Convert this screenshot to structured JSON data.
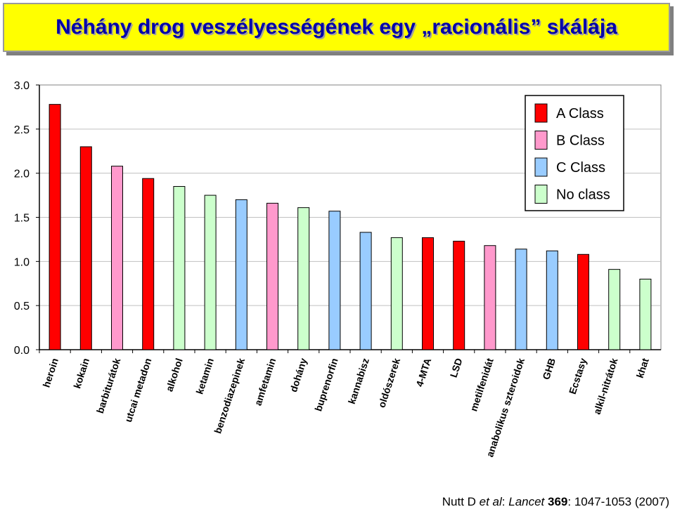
{
  "title": "Néhány drog veszélyességének egy „racionális” skálája",
  "citation": {
    "authors": "Nutt D ",
    "etal": "et al",
    "colon1": ": ",
    "journal": "Lancet",
    "space": " ",
    "volume": "369",
    "pages": ": 1047-1053 (2007)"
  },
  "colors": {
    "A": "#ff0000",
    "B": "#ff99cc",
    "C": "#99ccff",
    "N": "#ccffcc"
  },
  "chart_data": {
    "type": "bar",
    "title": "",
    "xlabel": "",
    "ylabel": "",
    "ylim": [
      0,
      3.0
    ],
    "yticks": [
      "0.0",
      "0.5",
      "1.0",
      "1.5",
      "2.0",
      "2.5",
      "3.0"
    ],
    "grid": true,
    "legend_position": "top-right",
    "legend": [
      {
        "key": "A",
        "label": "A  Class"
      },
      {
        "key": "B",
        "label": "B  Class"
      },
      {
        "key": "C",
        "label": "C  Class"
      },
      {
        "key": "N",
        "label": "No class"
      }
    ],
    "bars": [
      {
        "label": "heroin",
        "value": 2.78,
        "class": "A"
      },
      {
        "label": "kokain",
        "value": 2.3,
        "class": "A"
      },
      {
        "label": "barbiturátok",
        "value": 2.08,
        "class": "B"
      },
      {
        "label": "utcai metadon",
        "value": 1.94,
        "class": "A"
      },
      {
        "label": "alkohol",
        "value": 1.85,
        "class": "N"
      },
      {
        "label": "ketamin",
        "value": 1.75,
        "class": "N"
      },
      {
        "label": "benzodiazepinek",
        "value": 1.7,
        "class": "C"
      },
      {
        "label": "amfetamin",
        "value": 1.66,
        "class": "B"
      },
      {
        "label": "dohány",
        "value": 1.61,
        "class": "N"
      },
      {
        "label": "buprenorfin",
        "value": 1.57,
        "class": "C"
      },
      {
        "label": "kannabisz",
        "value": 1.33,
        "class": "C"
      },
      {
        "label": "oldószerek",
        "value": 1.27,
        "class": "N"
      },
      {
        "label": "4-MTA",
        "value": 1.27,
        "class": "A"
      },
      {
        "label": "LSD",
        "value": 1.23,
        "class": "A"
      },
      {
        "label": "metilfenidát",
        "value": 1.18,
        "class": "B"
      },
      {
        "label": "anabolikus szteroidok",
        "value": 1.14,
        "class": "C"
      },
      {
        "label": "GHB",
        "value": 1.12,
        "class": "C"
      },
      {
        "label": "Ecstasy",
        "value": 1.08,
        "class": "A"
      },
      {
        "label": "alkil-nitrátok",
        "value": 0.91,
        "class": "N"
      },
      {
        "label": "khat",
        "value": 0.8,
        "class": "N"
      }
    ]
  }
}
